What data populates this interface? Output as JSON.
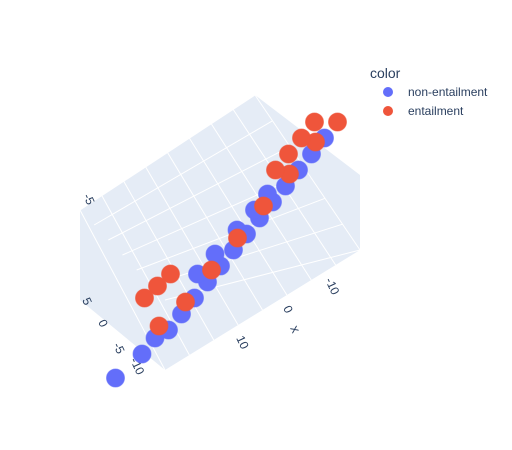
{
  "chart_data": {
    "type": "scatter",
    "projection": "3d",
    "title": "",
    "axes": {
      "x": {
        "label": "x",
        "ticks": [
          "-10",
          "0",
          "10"
        ]
      },
      "y": {
        "label": "",
        "ticks": [
          "5",
          "0",
          "-5",
          "-10"
        ]
      },
      "z": {
        "label": "",
        "ticks": [
          "-5"
        ]
      }
    },
    "grid": true,
    "legend": {
      "title": "color",
      "placement": "top-right",
      "entries": [
        {
          "name": "non-entailment",
          "color": "#636efa"
        },
        {
          "name": "entailment",
          "color": "#ef553b"
        }
      ]
    },
    "series": [
      {
        "name": "non-entailment",
        "color": "#636efa",
        "x": [
          -9,
          -7,
          -6,
          -5,
          -4,
          -3,
          -2,
          -1,
          0,
          1,
          2,
          3,
          4,
          5,
          6,
          7,
          -2,
          -1,
          0,
          1,
          2
        ],
        "y": [
          -8,
          -6,
          -5,
          -4,
          -3,
          -2,
          -1,
          0,
          1,
          2,
          3,
          4,
          5,
          6,
          7,
          8,
          -3,
          -1,
          2,
          4,
          5
        ],
        "z": [
          -5,
          -4,
          -3,
          -3,
          -2,
          -1,
          0,
          1,
          2,
          3,
          4,
          5,
          6,
          7,
          8,
          9,
          2,
          3,
          4,
          5,
          6
        ]
      },
      {
        "name": "entailment",
        "color": "#ef553b",
        "x": [
          -6,
          -4,
          -2,
          0,
          2,
          4,
          6,
          8,
          -8,
          -10,
          -12,
          2,
          3,
          4,
          5
        ],
        "y": [
          -4,
          -2,
          0,
          2,
          4,
          6,
          8,
          9,
          3,
          4,
          5,
          7,
          8,
          9,
          10
        ],
        "z": [
          -2,
          -1,
          1,
          3,
          5,
          7,
          9,
          10,
          2,
          1,
          0,
          8,
          9,
          10,
          11
        ]
      }
    ]
  }
}
